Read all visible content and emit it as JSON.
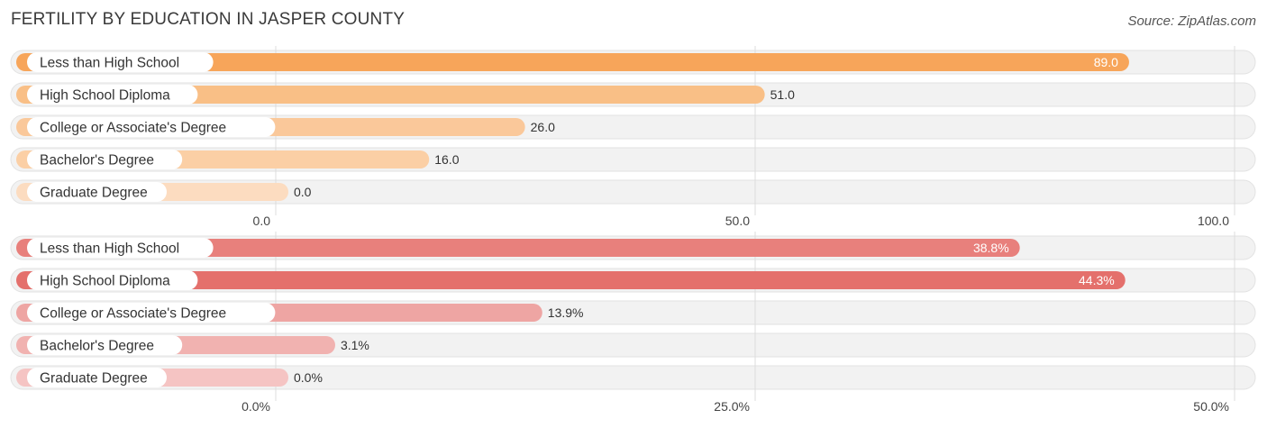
{
  "title": "FERTILITY BY EDUCATION IN JASPER COUNTY",
  "source": "Source: ZipAtlas.com",
  "chart_data": [
    {
      "type": "bar",
      "orientation": "horizontal",
      "categories": [
        "Less than High School",
        "High School Diploma",
        "College or Associate's Degree",
        "Bachelor's Degree",
        "Graduate Degree"
      ],
      "values": [
        89.0,
        51.0,
        26.0,
        16.0,
        0.0
      ],
      "value_labels": [
        "89.0",
        "51.0",
        "26.0",
        "16.0",
        "0.0"
      ],
      "xlim": [
        0,
        100
      ],
      "ticks": [
        0,
        50,
        100
      ],
      "tick_labels": [
        "0.0",
        "50.0",
        "100.0"
      ],
      "colors": [
        "#f7a55a",
        "#f9bf86",
        "#fac89a",
        "#fbcfa5",
        "#fcdcc0"
      ],
      "label_inside": [
        true,
        false,
        false,
        false,
        false
      ],
      "grid": true
    },
    {
      "type": "bar",
      "orientation": "horizontal",
      "categories": [
        "Less than High School",
        "High School Diploma",
        "College or Associate's Degree",
        "Bachelor's Degree",
        "Graduate Degree"
      ],
      "values": [
        38.8,
        44.3,
        13.9,
        3.1,
        0.0
      ],
      "value_labels": [
        "38.8%",
        "44.3%",
        "13.9%",
        "3.1%",
        "0.0%"
      ],
      "xlim": [
        0,
        50
      ],
      "ticks": [
        0,
        25,
        50
      ],
      "tick_labels": [
        "0.0%",
        "25.0%",
        "50.0%"
      ],
      "colors": [
        "#e8807c",
        "#e4706c",
        "#eea5a3",
        "#f1b2b0",
        "#f5c4c3"
      ],
      "label_inside": [
        true,
        true,
        false,
        false,
        false
      ],
      "grid": true
    }
  ]
}
